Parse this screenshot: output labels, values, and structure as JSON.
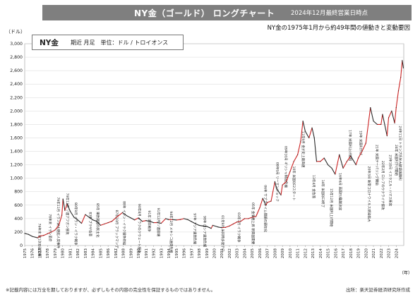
{
  "header": {
    "title": "NY金（ゴールド） ロングチャート",
    "date_note": "2024年12月最終営業日時点"
  },
  "subtitle": "NY金の1975年1月から約49年間の値動きと変動要因",
  "legend": {
    "name": "NY金",
    "desc": "期近 月足　単位：ドル / トロイオンス"
  },
  "footnote": "※記載内容には万全を期しておりますが、必ずしもその内容の完全性を保証するものではありません。",
  "source": "出所：楽天証券経済研究所作成",
  "colors": {
    "header_bg": "#7f7f7f",
    "line": "#2a2a2a",
    "up": "#cc2222",
    "grid": "#d7d7d7"
  },
  "annotations": [
    {
      "year": 1976.8,
      "price": 330,
      "text": "76年末 第1次石油危機"
    },
    {
      "year": 1978.2,
      "price": 470,
      "text": "78年末 イラン革命"
    },
    {
      "year": 1979.3,
      "price": 720,
      "text": "79年11月 イラン米大使館人質事件"
    },
    {
      "year": 1980.5,
      "price": 780,
      "text": "79年12月 ソ連アフガン侵攻"
    },
    {
      "year": 1981.6,
      "price": 640,
      "text": "80年9月 イラン・イラク戦争"
    },
    {
      "year": 1983.5,
      "price": 500,
      "text": "83年 プラザ合意"
    },
    {
      "year": 1984.5,
      "price": 630,
      "text": "85年 東欧諸国の民主化"
    },
    {
      "year": 1987.0,
      "price": 530,
      "text": "87年10月 ブラックマンデー"
    },
    {
      "year": 1988.0,
      "price": 660,
      "text": "88年 イラン・イラク戦争終結"
    },
    {
      "year": 1990.0,
      "price": 620,
      "text": "90年8月 イラクのクウェート侵攻"
    },
    {
      "year": 1991.3,
      "price": 520,
      "text": "91年 湾岸戦争"
    },
    {
      "year": 1992.5,
      "price": 560,
      "text": "91年12月 ソ連崩壊"
    },
    {
      "year": 1994.2,
      "price": 510,
      "text": "94年12月 メキシコ通貨危機"
    },
    {
      "year": 1997.3,
      "price": 480,
      "text": "97年 アジア通貨危機"
    },
    {
      "year": 1998.6,
      "price": 440,
      "text": "98年 ロシア通貨危機"
    },
    {
      "year": 2001.0,
      "price": 450,
      "text": "01年9月 米同時多発テロ"
    },
    {
      "year": 2003.1,
      "price": 490,
      "text": "03年3月 イラク戦争"
    },
    {
      "year": 2005.0,
      "price": 640,
      "text": "05年 金価格上昇 新興国需要"
    },
    {
      "year": 2006.6,
      "price": 900,
      "text": "06年 サブプライム問題の顕在化"
    },
    {
      "year": 2008.2,
      "price": 1240,
      "text": "08年9月 リーマンショック"
    },
    {
      "year": 2009.3,
      "price": 1480,
      "text": "09年10月 ギリシャ財政危機"
    },
    {
      "year": 2010.4,
      "price": 1180,
      "text": "10年 米国QE2スタート"
    },
    {
      "year": 2011.6,
      "price": 1700,
      "text": "11年9月 金が史上最高値"
    },
    {
      "year": 2013.0,
      "price": 1050,
      "text": "13年4月 金急落"
    },
    {
      "year": 2014.2,
      "price": 980,
      "text": "14年 米国QE3終了"
    },
    {
      "year": 2015.3,
      "price": 850,
      "text": "15年12月 米国利上げ開始"
    },
    {
      "year": 2016.5,
      "price": 1080,
      "text": "16年6月 英国EU離脱決定"
    },
    {
      "year": 2017.8,
      "price": 1720,
      "text": "17年 米国利上げ継続"
    },
    {
      "year": 2019.2,
      "price": 1710,
      "text": "19年 米国利下げ"
    },
    {
      "year": 2020.3,
      "price": 1180,
      "text": "20年3月 新型コロナウイルス感染拡大"
    },
    {
      "year": 2021.3,
      "price": 1500,
      "text": "21年 米国テーパリング開始"
    },
    {
      "year": 2022.1,
      "price": 1260,
      "text": "22年2月 ロシアのウクライナ侵攻"
    },
    {
      "year": 2023.1,
      "price": 1350,
      "text": "23年10月 イスラエル・ハマス衝突"
    },
    {
      "year": 2023.9,
      "price": 1500,
      "text": "24年 米国利下げ開始"
    },
    {
      "year": 2024.4,
      "price": 1780,
      "text": "24年11月 トランプ氏米大統領選勝利"
    }
  ],
  "chart_data": {
    "type": "line",
    "title": "NY金（ゴールド） ロングチャート",
    "xlabel": "（年）",
    "ylabel": "（ドル）",
    "ylim": [
      0,
      3000
    ],
    "xlim": [
      1975,
      2025
    ],
    "y_ticks": [
      "0",
      "200",
      "400",
      "600",
      "800",
      "1,000",
      "1,200",
      "1,400",
      "1,600",
      "1,800",
      "2,000",
      "2,200",
      "2,400",
      "2,600",
      "2,800",
      "3,000"
    ],
    "x_ticks": [
      "1975",
      "1976",
      "1977",
      "1978",
      "1979",
      "1980",
      "1981",
      "1982",
      "1983",
      "1984",
      "1985",
      "1986",
      "1987",
      "1988",
      "1989",
      "1990",
      "1991",
      "1992",
      "1993",
      "1994",
      "1995",
      "1996",
      "1997",
      "1998",
      "1999",
      "2000",
      "2001",
      "2002",
      "2003",
      "2004",
      "2005",
      "2006",
      "2007",
      "2008",
      "2009",
      "2010",
      "2011",
      "2012",
      "2013",
      "2014",
      "2015",
      "2016",
      "2017",
      "2018",
      "2019",
      "2020",
      "2021",
      "2022",
      "2023",
      "2024"
    ],
    "series": [
      {
        "name": "NY金",
        "x": [
          1975.0,
          1975.5,
          1976.0,
          1976.7,
          1977.0,
          1977.5,
          1978.0,
          1978.5,
          1979.0,
          1979.5,
          1979.9,
          1980.05,
          1980.3,
          1980.6,
          1981.0,
          1981.5,
          1982.0,
          1982.5,
          1983.0,
          1983.5,
          1984.0,
          1984.5,
          1985.0,
          1985.5,
          1986.0,
          1986.5,
          1987.0,
          1987.9,
          1988.5,
          1989.0,
          1989.5,
          1990.0,
          1990.5,
          1991.0,
          1991.5,
          1992.0,
          1992.5,
          1993.0,
          1993.6,
          1994.0,
          1994.5,
          1995.0,
          1995.5,
          1996.0,
          1996.5,
          1997.0,
          1997.5,
          1998.0,
          1998.5,
          1999.0,
          1999.6,
          1999.8,
          2000.5,
          2001.0,
          2001.5,
          2002.0,
          2002.5,
          2003.0,
          2003.5,
          2004.0,
          2004.5,
          2005.0,
          2005.5,
          2006.0,
          2006.4,
          2006.8,
          2007.0,
          2007.5,
          2008.0,
          2008.2,
          2008.8,
          2009.0,
          2009.5,
          2010.0,
          2010.5,
          2011.0,
          2011.4,
          2011.7,
          2012.0,
          2012.5,
          2012.9,
          2013.2,
          2013.5,
          2014.0,
          2014.5,
          2015.0,
          2015.5,
          2015.95,
          2016.5,
          2017.0,
          2017.5,
          2018.0,
          2018.7,
          2019.0,
          2019.5,
          2020.0,
          2020.6,
          2021.0,
          2021.5,
          2022.0,
          2022.2,
          2022.8,
          2023.0,
          2023.4,
          2023.8,
          2024.0,
          2024.3,
          2024.6,
          2024.8,
          2024.95
        ],
        "y": [
          180,
          165,
          135,
          115,
          140,
          150,
          175,
          200,
          230,
          300,
          450,
          690,
          520,
          620,
          510,
          420,
          380,
          330,
          460,
          420,
          380,
          360,
          300,
          320,
          340,
          360,
          410,
          490,
          440,
          410,
          380,
          410,
          360,
          370,
          360,
          340,
          340,
          330,
          400,
          385,
          385,
          380,
          385,
          400,
          385,
          355,
          325,
          300,
          290,
          285,
          255,
          300,
          275,
          265,
          270,
          290,
          320,
          350,
          360,
          400,
          400,
          420,
          430,
          560,
          700,
          600,
          640,
          660,
          950,
          850,
          750,
          900,
          950,
          1100,
          1250,
          1350,
          1550,
          1850,
          1700,
          1600,
          1750,
          1600,
          1250,
          1250,
          1300,
          1200,
          1150,
          1060,
          1350,
          1150,
          1250,
          1330,
          1200,
          1300,
          1400,
          1520,
          2050,
          1850,
          1800,
          1800,
          1950,
          1630,
          1900,
          2000,
          1820,
          2050,
          2300,
          2500,
          2750,
          2640
        ]
      }
    ]
  }
}
